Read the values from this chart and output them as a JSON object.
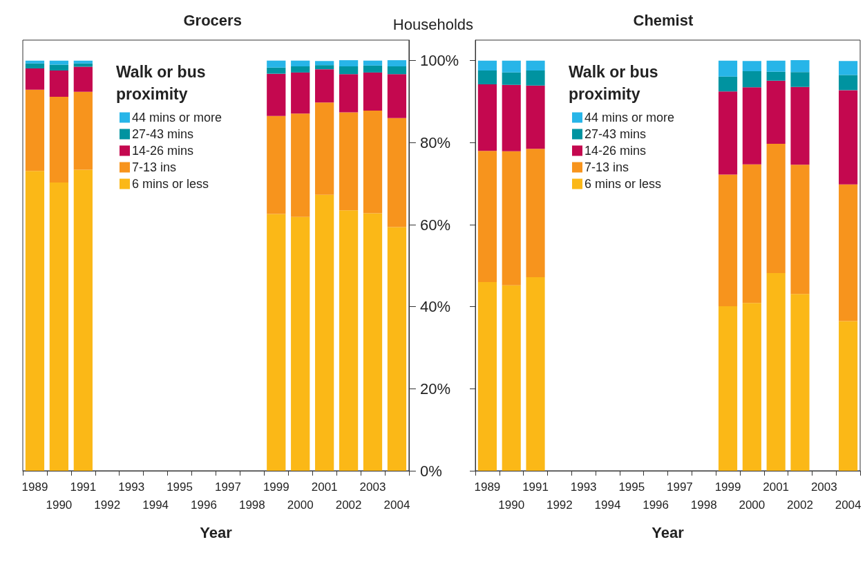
{
  "chart_data": [
    {
      "type": "bar",
      "title": "Grocers",
      "xlabel": "Year",
      "ylabel": "Households",
      "legend_title": "Walk or bus proximity",
      "legend": "top left",
      "stacked": true,
      "grid": false,
      "categories": [
        "1989",
        "1990",
        "1991",
        "1992",
        "1993",
        "1994",
        "1995",
        "1996",
        "1997",
        "1998",
        "1999",
        "2000",
        "2001",
        "2002",
        "2003",
        "2004"
      ],
      "ylim": [
        0,
        105
      ],
      "yticks": [
        {
          "value": 0,
          "label": "0%"
        },
        {
          "value": 20,
          "label": "20%"
        },
        {
          "value": 40,
          "label": "40%"
        },
        {
          "value": 60,
          "label": "60%"
        },
        {
          "value": 80,
          "label": "80%"
        },
        {
          "value": 100,
          "label": "100%"
        }
      ],
      "series": [
        {
          "name": "6 mins or less",
          "color": "#fbb817",
          "values": [
            73.1,
            70.3,
            73.4,
            null,
            null,
            null,
            null,
            null,
            null,
            null,
            62.6,
            61.9,
            67.3,
            63.5,
            62.8,
            59.4
          ]
        },
        {
          "name": "7-13 ins",
          "color": "#f7941d",
          "values": [
            19.8,
            20.9,
            19.0,
            null,
            null,
            null,
            null,
            null,
            null,
            null,
            23.9,
            25.2,
            22.5,
            23.9,
            25.0,
            26.6
          ]
        },
        {
          "name": "14-26 mins",
          "color": "#c4084f",
          "values": [
            5.2,
            6.4,
            6.1,
            null,
            null,
            null,
            null,
            null,
            null,
            null,
            10.3,
            10.0,
            8.1,
            9.3,
            9.3,
            10.7
          ]
        },
        {
          "name": "27-43 mins",
          "color": "#0093a0",
          "values": [
            1.2,
            1.4,
            0.8,
            null,
            null,
            null,
            null,
            null,
            null,
            null,
            1.5,
            1.5,
            1.0,
            1.9,
            1.7,
            1.9
          ]
        },
        {
          "name": "44 mins or more",
          "color": "#27b5e8",
          "values": [
            0.7,
            1.0,
            0.7,
            null,
            null,
            null,
            null,
            null,
            null,
            null,
            1.7,
            1.4,
            1.0,
            1.5,
            1.2,
            1.5
          ]
        }
      ]
    },
    {
      "type": "bar",
      "title": "Chemist",
      "xlabel": "Year",
      "legend_title": "Walk or bus proximity",
      "legend": "top left",
      "stacked": true,
      "grid": false,
      "tick_labels": "x",
      "categories": [
        "1989",
        "1990",
        "1991",
        "1992",
        "1993",
        "1994",
        "1995",
        "1996",
        "1997",
        "1998",
        "1999",
        "2000",
        "2001",
        "2002",
        "2003",
        "2004"
      ],
      "ylim": [
        0,
        105
      ],
      "yticks": [
        {
          "value": 0,
          "label": null
        },
        {
          "value": 20,
          "label": null
        },
        {
          "value": 40,
          "label": null
        },
        {
          "value": 60,
          "label": null
        },
        {
          "value": 80,
          "label": null
        },
        {
          "value": 100,
          "label": null
        }
      ],
      "series": [
        {
          "name": "6 mins or less",
          "color": "#fbb817",
          "values": [
            46.0,
            45.2,
            47.2,
            null,
            null,
            null,
            null,
            null,
            null,
            null,
            40.1,
            40.9,
            48.2,
            43.1,
            null,
            36.5
          ]
        },
        {
          "name": "7-13 ins",
          "color": "#f7941d",
          "values": [
            32.0,
            32.7,
            31.3,
            null,
            null,
            null,
            null,
            null,
            null,
            null,
            32.1,
            33.8,
            31.5,
            31.5,
            null,
            33.3
          ]
        },
        {
          "name": "14-26 mins",
          "color": "#c4084f",
          "values": [
            16.2,
            16.2,
            15.4,
            null,
            null,
            null,
            null,
            null,
            null,
            null,
            20.3,
            18.8,
            15.4,
            19.0,
            null,
            23.0
          ]
        },
        {
          "name": "27-43 mins",
          "color": "#0093a0",
          "values": [
            3.4,
            3.0,
            3.7,
            null,
            null,
            null,
            null,
            null,
            null,
            null,
            3.6,
            3.9,
            2.2,
            3.6,
            null,
            3.7
          ]
        },
        {
          "name": "44 mins or more",
          "color": "#27b5e8",
          "values": [
            2.4,
            2.9,
            2.4,
            null,
            null,
            null,
            null,
            null,
            null,
            null,
            3.9,
            2.5,
            2.7,
            2.9,
            null,
            3.4
          ]
        }
      ]
    }
  ]
}
